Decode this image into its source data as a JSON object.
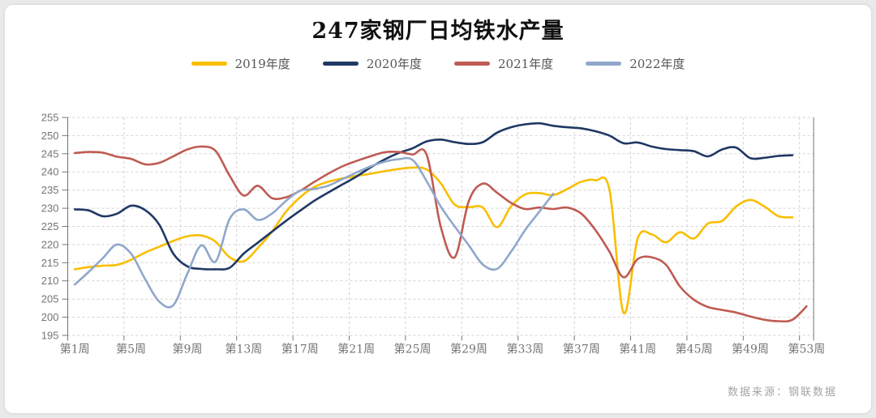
{
  "footer": {
    "source_text": "数据来源：钢联数据"
  },
  "chart_data": {
    "type": "line",
    "title": "247家钢厂日均铁水产量",
    "xlabel": "",
    "ylabel": "",
    "ylim": [
      195,
      255
    ],
    "y_step": 5,
    "grid": "dashed",
    "legend_position": "top-center",
    "x_unit": "周 (week of year)",
    "x_ticks": [
      {
        "week": 1,
        "label": "第1周"
      },
      {
        "week": 5,
        "label": "第5周"
      },
      {
        "week": 9,
        "label": "第9周"
      },
      {
        "week": 13,
        "label": "第13周"
      },
      {
        "week": 17,
        "label": "第17周"
      },
      {
        "week": 21,
        "label": "第21周"
      },
      {
        "week": 25,
        "label": "第25周"
      },
      {
        "week": 29,
        "label": "第29周"
      },
      {
        "week": 33,
        "label": "第33周"
      },
      {
        "week": 37,
        "label": "第37周"
      },
      {
        "week": 41,
        "label": "第41周"
      },
      {
        "week": 45,
        "label": "第45周"
      },
      {
        "week": 49,
        "label": "第49周"
      },
      {
        "week": 53,
        "label": "第53周"
      }
    ],
    "series": [
      {
        "name": "2019年度",
        "color": "#F9BE00",
        "start_week": 1,
        "values": [
          213.2,
          213.8,
          214.2,
          214.4,
          215.8,
          217.8,
          219.4,
          221.0,
          222.3,
          222.5,
          220.8,
          216.5,
          215.4,
          219.0,
          223.5,
          229.0,
          233.0,
          235.8,
          237.3,
          238.2,
          238.9,
          239.5,
          240.2,
          240.8,
          241.2,
          240.7,
          236.9,
          231.0,
          230.3,
          230.2,
          224.8,
          230.5,
          233.8,
          234.2,
          233.6,
          235.3,
          237.3,
          237.7,
          235.0,
          201.2,
          221.7,
          222.8,
          220.6,
          223.4,
          221.7,
          225.8,
          226.5,
          230.5,
          232.3,
          230.5,
          227.8,
          227.5
        ]
      },
      {
        "name": "2020年度",
        "color": "#1F3864",
        "start_week": 1,
        "values": [
          229.7,
          229.4,
          227.8,
          228.5,
          230.7,
          229.5,
          225.5,
          217.5,
          214.0,
          213.3,
          213.2,
          213.6,
          217.5,
          220.5,
          223.5,
          226.5,
          229.3,
          232.0,
          234.3,
          236.5,
          238.7,
          241.2,
          243.4,
          245.2,
          246.5,
          248.4,
          248.9,
          248.2,
          247.7,
          248.2,
          250.8,
          252.3,
          253.1,
          253.4,
          252.7,
          252.3,
          252.0,
          251.2,
          250.0,
          247.9,
          248.1,
          247.0,
          246.3,
          246.0,
          245.7,
          244.3,
          246.2,
          246.7,
          243.8,
          243.9,
          244.4,
          244.6
        ]
      },
      {
        "name": "2021年度",
        "color": "#BF5B52",
        "start_week": 1,
        "values": [
          245.2,
          245.5,
          245.3,
          244.2,
          243.6,
          242.1,
          242.5,
          244.3,
          246.2,
          247.0,
          245.8,
          239.0,
          233.5,
          236.2,
          232.8,
          233.0,
          234.8,
          237.2,
          239.5,
          241.5,
          243.0,
          244.3,
          245.4,
          245.5,
          244.8,
          244.8,
          225.0,
          216.5,
          232.0,
          236.8,
          234.3,
          231.5,
          229.8,
          230.2,
          229.8,
          230.2,
          228.5,
          224.0,
          218.0,
          211.0,
          216.0,
          216.5,
          214.5,
          208.5,
          204.8,
          202.8,
          202.0,
          201.3,
          200.2,
          199.3,
          198.9,
          199.3,
          203.0
        ]
      },
      {
        "name": "2022年度",
        "color": "#90A7CB",
        "start_week": 1,
        "values": [
          209.0,
          212.5,
          216.3,
          220.0,
          217.5,
          210.5,
          204.3,
          203.3,
          212.0,
          219.8,
          215.3,
          227.0,
          229.7,
          226.8,
          228.5,
          232.0,
          234.8,
          235.3,
          236.2,
          238.0,
          239.8,
          241.5,
          242.8,
          243.5,
          243.3,
          237.5,
          230.5,
          225.0,
          219.8,
          214.5,
          213.3,
          218.0,
          224.0,
          229.0,
          234.0
        ]
      }
    ]
  }
}
